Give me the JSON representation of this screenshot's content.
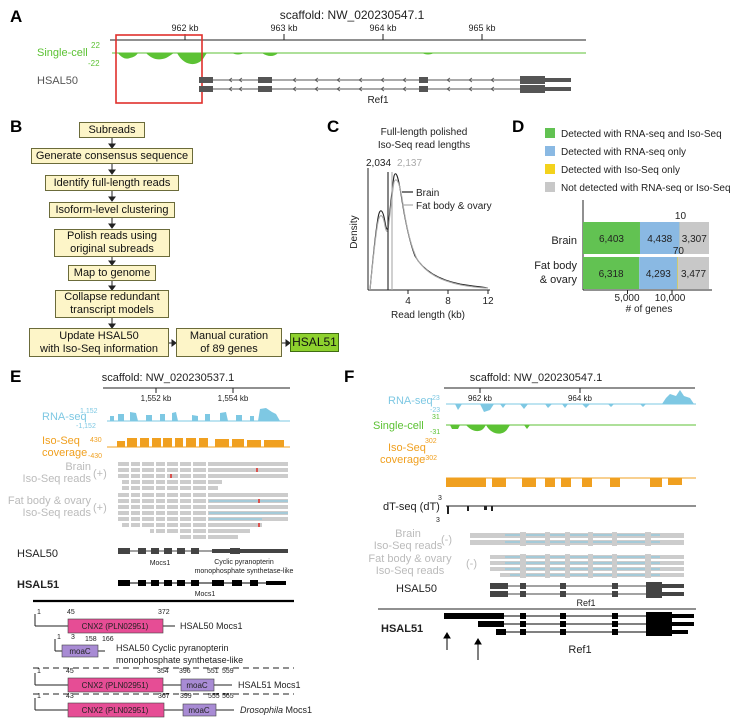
{
  "panels": {
    "a": "A",
    "b": "B",
    "c": "C",
    "d": "D",
    "e": "E",
    "f": "F"
  },
  "colors": {
    "rna": "#7ec8e3",
    "sc": "#5cc234",
    "iso": "#f0a020",
    "gene": "#555555",
    "green_bar": "#62c252",
    "blue_bar": "#8ab9e3",
    "yellow_bar": "#f3d21c",
    "grey_bar": "#c8c8c8",
    "domain_pink": "#e64d95",
    "domain_purple": "#a88bd4",
    "flow_box": "#fdf5c8",
    "flow_final": "#8ed12e"
  },
  "panel_a": {
    "scaffold": "scaffold: NW_020230547.1",
    "ticks": [
      "962 kb",
      "963 kb",
      "964 kb",
      "965 kb"
    ],
    "track_label": "Single-cell",
    "scale_top": "22",
    "scale_bottom": "-22",
    "hsal50": "HSAL50",
    "gene": "Ref1"
  },
  "panel_b": {
    "steps": [
      "Subreads",
      "Generate consensus sequence",
      "Identify full-length reads",
      "Isoform-level clustering",
      "Polish reads using\noriginal subreads",
      "Map to genome",
      "Collapse redundant\ntranscript models",
      "Update HSAL50\nwith Iso-Seq information",
      "Manual curation\nof 89 genes",
      "HSAL51"
    ]
  },
  "panel_c": {
    "title_line1": "Full-length polished",
    "title_line2": "Iso-Seq read lengths",
    "ylabel": "Density",
    "xlabel": "Read length (kb)",
    "peak_brain": "2,034",
    "peak_fat": "2,137",
    "legend": [
      "Brain",
      "Fat body & ovary"
    ],
    "xticks": [
      "4",
      "8",
      "12"
    ]
  },
  "panel_d": {
    "legend": [
      "Detected with RNA-seq and Iso-Seq",
      "Detected with RNA-seq only",
      "Detected with Iso-Seq only",
      "Not detected with RNA-seq or Iso-Seq"
    ],
    "rows": [
      {
        "label1": "Brain",
        "label2": "",
        "values": [
          6403,
          4438,
          10,
          3307
        ],
        "labels": [
          "6,403",
          "4,438",
          "10",
          "3,307"
        ]
      },
      {
        "label1": "Fat body",
        "label2": "& ovary",
        "values": [
          6318,
          4293,
          70,
          3477
        ],
        "labels": [
          "6,318",
          "4,293",
          "70",
          "3,477"
        ]
      }
    ],
    "xticks": [
      "5,000",
      "10,000"
    ],
    "xlabel": "# of genes"
  },
  "panel_e": {
    "scaffold": "scaffold: NW_020230537.1",
    "ticks": [
      "1,552 kb",
      "1,554 kb"
    ],
    "rna_label": "RNA-seq",
    "rna_top": "1,152",
    "rna_bottom": "-1,152",
    "iso_label1": "Iso-Seq",
    "iso_label2": "coverage",
    "iso_top": "430",
    "iso_bottom": "-430",
    "brain1": "Brain",
    "brain2": "Iso-Seq reads",
    "plus": "(+)",
    "fat1": "Fat body & ovary",
    "fat2": "Iso-Seq reads",
    "hsal50": "HSAL50",
    "hsal51": "HSAL51",
    "gene_mocs1": "Mocs1",
    "gene_cpps1": "Cyclic pyranopterin",
    "gene_cpps2": "monophosphate synthetase-like",
    "gene_mocs1_51": "Mocs1",
    "domains": [
      {
        "start": "1",
        "n1": "45",
        "n2": "372",
        "cnx": "CNX2 (PLN02951)",
        "label": "HSAL50 Mocs1"
      },
      {
        "start": "1",
        "n1": "3",
        "n2": "158",
        "n3": "166",
        "moac": "moaC",
        "label1": "HSAL50 Cyclic pyranopterin",
        "label2": "monophosphate synthetase-like"
      },
      {
        "start": "1",
        "n1": "45",
        "n2": "354",
        "n3": "396",
        "n4": "551",
        "n5": "559",
        "cnx": "CNX2 (PLN02951)",
        "moac": "moaC",
        "label": "HSAL51 Mocs1"
      },
      {
        "start": "1",
        "n1": "43",
        "n2": "367",
        "n3": "399",
        "n4": "555",
        "n5": "565",
        "cnx": "CNX2 (PLN02951)",
        "moac": "moaC",
        "label_italic": "Drosophila",
        "label": " Mocs1"
      }
    ]
  },
  "panel_f": {
    "scaffold": "scaffold: NW_020230547.1",
    "ticks": [
      "962 kb",
      "964 kb"
    ],
    "rna_label": "RNA-seq",
    "rna_top": "23",
    "rna_bottom": "-23",
    "sc_label": "Single-cell",
    "sc_top": "31",
    "sc_bottom": "-31",
    "iso_label1": "Iso-Seq",
    "iso_label2": "coverage",
    "iso_top": "302",
    "iso_bottom": "-302",
    "dt_label": "dT-seq (dT)",
    "dt_top": "3",
    "dt_bottom": "3",
    "brain1": "Brain",
    "brain2": "Iso-Seq reads",
    "minus": "(-)",
    "fat1": "Fat body & ovary",
    "fat2": "Iso-Seq reads",
    "hsal50": "HSAL50",
    "hsal51": "HSAL51",
    "gene": "Ref1",
    "gene51": "Ref1"
  }
}
